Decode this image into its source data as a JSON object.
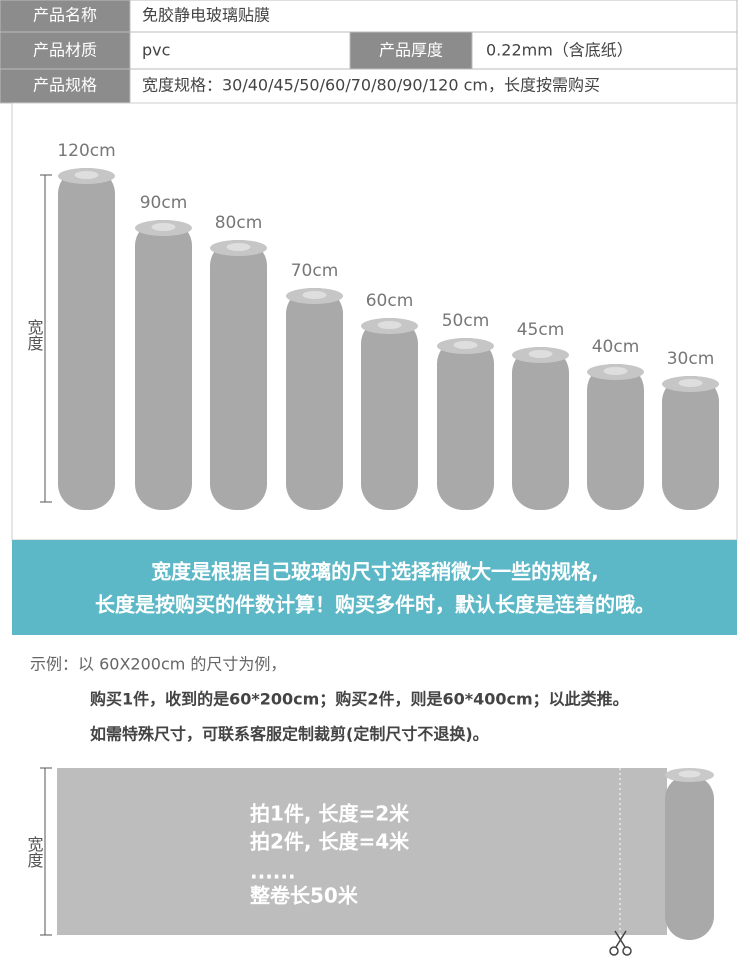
{
  "spec_table": {
    "rows": [
      [
        "产品名称",
        "免胶静电玻璃贴膜"
      ],
      [
        "产品材质",
        "pvc",
        "产品厚度",
        "0.22mm（含底纸）"
      ],
      [
        "产品规格",
        "宽度规格：30/40/45/50/60/70/80/90/120 cm，长度按需购买"
      ]
    ]
  },
  "width_figure": {
    "axis_label": "宽度",
    "rolls": [
      "120cm",
      "90cm",
      "80cm",
      "70cm",
      "60cm",
      "50cm",
      "45cm",
      "40cm",
      "30cm"
    ]
  },
  "banner": {
    "lines": [
      "宽度是根据自己玻璃的尺寸选择稍微大一些的规格,",
      "长度是按购买的件数计算！购买多件时，默认长度是连着的哦。"
    ]
  },
  "example": {
    "intro": "示例：以 60X200cm 的尺寸为例，",
    "lines": [
      "购买1件，收到的是60*200cm；购买2件，则是60*400cm；以此类推。",
      "如需特殊尺寸，可联系客服定制裁剪(定制尺寸不退换)。"
    ]
  },
  "length_figure": {
    "axis_label": "宽度",
    "lines": [
      "拍1件, 长度=2米",
      "拍2件, 长度=4米",
      "......",
      "整卷长50米"
    ]
  }
}
